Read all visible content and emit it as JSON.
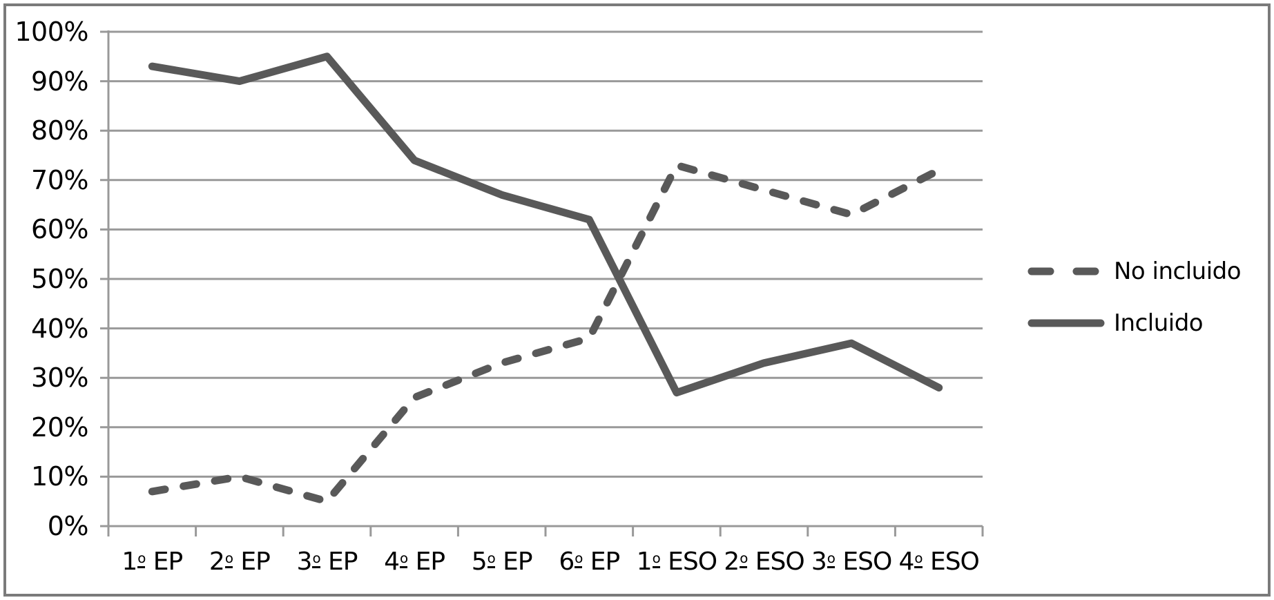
{
  "colors": {
    "series_line": "#595959",
    "gridline": "#999999",
    "axis": "#999999",
    "frame_border": "#7B7B7B",
    "text": "#000000",
    "background": "#FFFFFF"
  },
  "chart_data": {
    "type": "line",
    "categories": [
      "1º EP",
      "2º EP",
      "3º EP",
      "4º EP",
      "5º EP",
      "6º EP",
      "1º ESO",
      "2º ESO",
      "3º ESO",
      "4º ESO"
    ],
    "series": [
      {
        "name": "No incluido",
        "line_style": "dashed",
        "values": [
          7,
          10,
          5,
          26,
          33,
          38,
          73,
          68,
          63,
          72
        ]
      },
      {
        "name": "Incluido",
        "line_style": "solid",
        "values": [
          93,
          90,
          95,
          74,
          67,
          62,
          27,
          33,
          37,
          28
        ]
      }
    ],
    "y_axis": {
      "min": 0,
      "max": 100,
      "step": 10,
      "unit": "%",
      "tick_labels": [
        "0%",
        "10%",
        "20%",
        "30%",
        "40%",
        "50%",
        "60%",
        "70%",
        "80%",
        "90%",
        "100%"
      ]
    },
    "grid": true,
    "legend_position": "right-middle"
  }
}
